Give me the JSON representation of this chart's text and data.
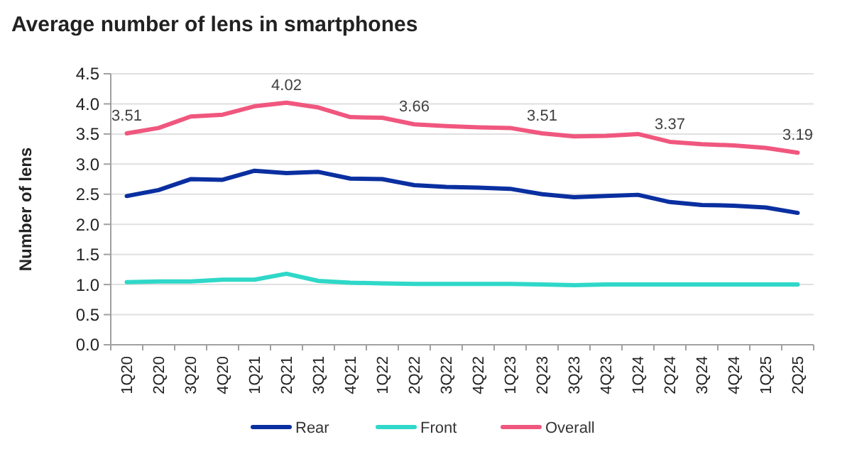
{
  "chart_data": {
    "type": "line",
    "title": "Average number of lens in smartphones",
    "ylabel": "Number of lens",
    "categories": [
      "1Q20",
      "2Q20",
      "3Q20",
      "4Q20",
      "1Q21",
      "2Q21",
      "3Q21",
      "4Q21",
      "1Q22",
      "2Q22",
      "3Q22",
      "4Q22",
      "1Q23",
      "2Q23",
      "3Q23",
      "4Q23",
      "1Q24",
      "2Q24",
      "3Q24",
      "4Q24",
      "1Q25",
      "2Q25"
    ],
    "series": [
      {
        "name": "Rear",
        "color": "#0a2fa0",
        "values": [
          2.47,
          2.57,
          2.75,
          2.74,
          2.89,
          2.85,
          2.87,
          2.76,
          2.75,
          2.65,
          2.62,
          2.61,
          2.59,
          2.5,
          2.45,
          2.47,
          2.49,
          2.37,
          2.32,
          2.31,
          2.28,
          2.19
        ]
      },
      {
        "name": "Front",
        "color": "#2fd8c8",
        "values": [
          1.04,
          1.05,
          1.05,
          1.08,
          1.08,
          1.18,
          1.06,
          1.03,
          1.02,
          1.01,
          1.01,
          1.01,
          1.01,
          1.0,
          0.99,
          1.0,
          1.0,
          1.0,
          1.0,
          1.0,
          1.0,
          1.0
        ]
      },
      {
        "name": "Overall",
        "color": "#f0577e",
        "values": [
          3.51,
          3.6,
          3.79,
          3.82,
          3.96,
          4.02,
          3.94,
          3.78,
          3.77,
          3.66,
          3.63,
          3.61,
          3.6,
          3.51,
          3.46,
          3.47,
          3.5,
          3.37,
          3.33,
          3.31,
          3.27,
          3.19
        ],
        "value_labels": [
          "3.51",
          null,
          null,
          null,
          null,
          "4.02",
          null,
          null,
          null,
          "3.66",
          null,
          null,
          null,
          "3.51",
          null,
          null,
          null,
          "3.37",
          null,
          null,
          null,
          "3.19"
        ]
      }
    ],
    "ylim": [
      0,
      4.5
    ],
    "yticks": [
      {
        "value": 0,
        "label": "0.0"
      },
      {
        "value": 0.5,
        "label": "0.5"
      },
      {
        "value": 1,
        "label": "1.0"
      },
      {
        "value": 1.5,
        "label": "1.5"
      },
      {
        "value": 2,
        "label": "2.0"
      },
      {
        "value": 2.5,
        "label": "2.5"
      },
      {
        "value": 3,
        "label": "3.0"
      },
      {
        "value": 3.5,
        "label": "3.5"
      },
      {
        "value": 4,
        "label": "4.0"
      },
      {
        "value": 4.5,
        "label": "4.5"
      }
    ],
    "grid": "y",
    "legend": "bottom",
    "marker": "none",
    "line_style": "solid"
  }
}
